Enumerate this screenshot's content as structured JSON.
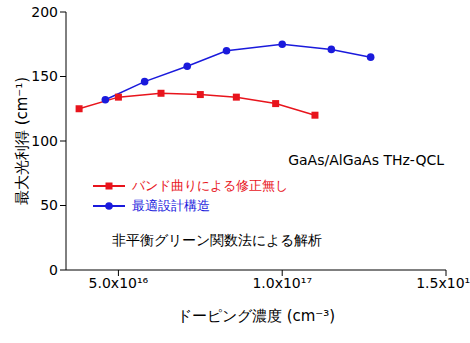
{
  "chart_data": {
    "type": "line",
    "x_label": "ドーピング濃度 (cm⁻³)",
    "y_label": "最大光利得 (cm⁻¹)",
    "annotations": [
      "GaAs/AlGaAs THz-QCL",
      "非平衡グリーン関数法による解析"
    ],
    "xlim": [
      3.4e+16,
      1.5e+17
    ],
    "xticks": [
      {
        "value": 5e+16,
        "label": "5.0x10¹⁶"
      },
      {
        "value": 1e+17,
        "label": "1.0x10¹⁷"
      },
      {
        "value": 1.5e+17,
        "label": "1.5x10¹⁷"
      }
    ],
    "ylim": [
      0,
      200
    ],
    "yticks": [
      0,
      50,
      100,
      150,
      200
    ],
    "grid": false,
    "legend": "center",
    "series": [
      {
        "name": "バンド曲りによる修正無し",
        "color": "#e8141c",
        "marker": "square",
        "x": [
          3.8e+16,
          5e+16,
          6.3e+16,
          7.5e+16,
          8.6e+16,
          9.8e+16,
          1.1e+17
        ],
        "values": [
          125,
          134,
          137,
          136,
          134,
          129,
          120
        ]
      },
      {
        "name": "最適設計構造",
        "color": "#1a1adc",
        "marker": "circle",
        "x": [
          4.6e+16,
          5.8e+16,
          7.1e+16,
          8.3e+16,
          1e+17,
          1.15e+17,
          1.27e+17
        ],
        "values": [
          132,
          146,
          158,
          170,
          175,
          171,
          165
        ]
      }
    ]
  }
}
